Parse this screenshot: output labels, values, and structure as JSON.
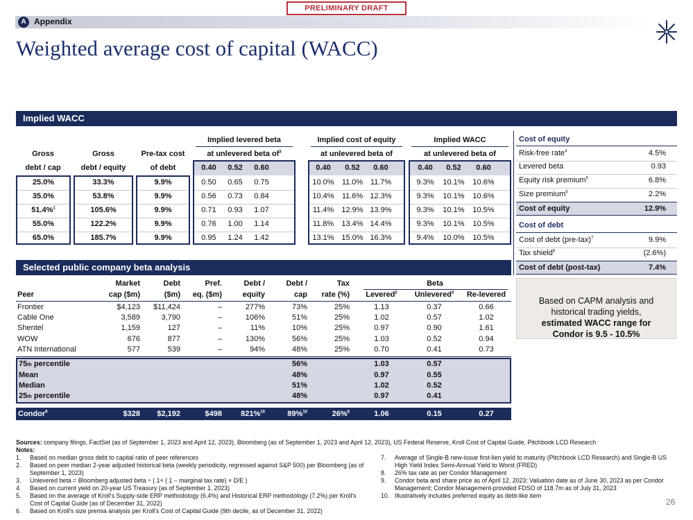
{
  "header": {
    "draft": "PRELIMINARY DRAFT",
    "appendix_letter": "A",
    "appendix_label": "Appendix",
    "title": "Weighted average cost of capital (WACC)",
    "page_number": "26"
  },
  "wacc": {
    "section_title": "Implied WACC",
    "col_gross_debt_cap": [
      "Gross",
      "debt  / cap"
    ],
    "col_gross_debt_equity": [
      "Gross",
      "debt / equity"
    ],
    "col_pretax": [
      "Pre-tax cost",
      "of debt"
    ],
    "grp_levered": [
      "Implied levered beta",
      "at unlevered beta of"
    ],
    "grp_levered_sup": "3",
    "grp_coe": [
      "Implied cost of equity",
      "at unlevered beta of"
    ],
    "grp_wacc": [
      "Implied WACC",
      "at unlevered beta of"
    ],
    "betas": [
      "0.40",
      "0.52",
      "0.60"
    ],
    "rows": [
      {
        "dc": "25.0%",
        "dc_sup": "",
        "de": "33.3%",
        "pt": "9.9%",
        "lb": [
          "0.50",
          "0.65",
          "0.75"
        ],
        "coe": [
          "10.0%",
          "11.0%",
          "11.7%"
        ],
        "w": [
          "9.3%",
          "10.1%",
          "10.6%"
        ]
      },
      {
        "dc": "35.0%",
        "dc_sup": "",
        "de": "53.8%",
        "pt": "9.9%",
        "lb": [
          "0.56",
          "0.73",
          "0.84"
        ],
        "coe": [
          "10.4%",
          "11.6%",
          "12.3%"
        ],
        "w": [
          "9.3%",
          "10.1%",
          "10.6%"
        ]
      },
      {
        "dc": "51.4%",
        "dc_sup": "1",
        "de": "105.6%",
        "pt": "9.9%",
        "lb": [
          "0.71",
          "0.93",
          "1.07"
        ],
        "coe": [
          "11.4%",
          "12.9%",
          "13.9%"
        ],
        "w": [
          "9.3%",
          "10.1%",
          "10.5%"
        ]
      },
      {
        "dc": "55.0%",
        "dc_sup": "",
        "de": "122.2%",
        "pt": "9.9%",
        "lb": [
          "0.76",
          "1.00",
          "1.14"
        ],
        "coe": [
          "11.8%",
          "13.4%",
          "14.4%"
        ],
        "w": [
          "9.3%",
          "10.1%",
          "10.5%"
        ]
      },
      {
        "dc": "65.0%",
        "dc_sup": "",
        "de": "185.7%",
        "pt": "9.9%",
        "lb": [
          "0.95",
          "1.24",
          "1.42"
        ],
        "coe": [
          "13.1%",
          "15.0%",
          "16.3%"
        ],
        "w": [
          "9.4%",
          "10.0%",
          "10.5%"
        ]
      }
    ]
  },
  "coe_panel": {
    "coe_title": "Cost of equity",
    "rows": [
      {
        "label": "Risk-free rate",
        "sup": "4",
        "value": "4.5%"
      },
      {
        "label": "Levered beta",
        "sup": "",
        "value": "0.93"
      },
      {
        "label": "Equity risk premium",
        "sup": "5",
        "value": "6.8%"
      },
      {
        "label": "Size premium",
        "sup": "6",
        "value": "2.2%"
      }
    ],
    "coe_total_label": "Cost of equity",
    "coe_total_value": "12.9%",
    "cod_title": "Cost of debt",
    "cod_rows": [
      {
        "label": "Cost of debt (pre-tax)",
        "sup": "7",
        "value": "9.9%"
      },
      {
        "label": "Tax shield",
        "sup": "8",
        "value": "(2.6%)"
      }
    ],
    "cod_total_label": "Cost of debt (post-tax)",
    "cod_total_value": "7.4%"
  },
  "capm_box": {
    "line1": "Based on CAPM analysis and",
    "line2": "historical trading yields,",
    "line3": "estimated WACC range for",
    "line4": "Condor is 9.5 - 10.5%"
  },
  "beta": {
    "section_title": "Selected public company beta analysis",
    "h_peer": "Peer",
    "h_mcap": [
      "Market",
      "cap ($m)"
    ],
    "h_debt": [
      "Debt",
      "($m)"
    ],
    "h_pref": [
      "Pref.",
      "eq. ($m)"
    ],
    "h_de": [
      "Debt /",
      "equity"
    ],
    "h_dc": [
      "Debt /",
      "cap"
    ],
    "h_tax": [
      "Tax",
      "rate (%)"
    ],
    "h_beta": "Beta",
    "h_lev": "Levered",
    "h_lev_sup": "2",
    "h_unlev": "Unlevered",
    "h_unlev_sup": "3",
    "h_relev": "Re-levered",
    "peers": [
      {
        "name": "Frontier",
        "mcap": "$4,123",
        "debt": "$11,424",
        "pref": "–",
        "de": "277%",
        "dc": "73%",
        "tax": "25%",
        "lev": "1.13",
        "unlev": "0.37",
        "relev": "0.66"
      },
      {
        "name": "Cable One",
        "mcap": "3,589",
        "debt": "3,790",
        "pref": "–",
        "de": "106%",
        "dc": "51%",
        "tax": "25%",
        "lev": "1.02",
        "unlev": "0.57",
        "relev": "1.02"
      },
      {
        "name": "Shentel",
        "mcap": "1,159",
        "debt": "127",
        "pref": "–",
        "de": "11%",
        "dc": "10%",
        "tax": "25%",
        "lev": "0.97",
        "unlev": "0.90",
        "relev": "1.61"
      },
      {
        "name": "WOW",
        "mcap": "676",
        "debt": "877",
        "pref": "–",
        "de": "130%",
        "dc": "56%",
        "tax": "25%",
        "lev": "1.03",
        "unlev": "0.52",
        "relev": "0.94"
      },
      {
        "name": "ATN International",
        "mcap": "577",
        "debt": "539",
        "pref": "–",
        "de": "94%",
        "dc": "48%",
        "tax": "25%",
        "lev": "0.70",
        "unlev": "0.41",
        "relev": "0.73"
      }
    ],
    "stats": [
      {
        "pre": "75",
        "th": "th",
        "post": " percentile",
        "dc": "56%",
        "lev": "1.03",
        "unlev": "0.57"
      },
      {
        "pre": "Mean",
        "th": "",
        "post": "",
        "dc": "48%",
        "lev": "0.97",
        "unlev": "0.55"
      },
      {
        "pre": "Median",
        "th": "",
        "post": "",
        "dc": "51%",
        "lev": "1.02",
        "unlev": "0.52"
      },
      {
        "pre": "25",
        "th": "th",
        "post": " percentile",
        "dc": "48%",
        "lev": "0.97",
        "unlev": "0.41"
      }
    ],
    "condor": {
      "name": "Condor",
      "name_sup": "9",
      "mcap": "$328",
      "debt": "$2,192",
      "pref": "$498",
      "de": "821%",
      "de_sup": "10",
      "dc": "89%",
      "dc_sup": "10",
      "tax": "26%",
      "tax_sup": "8",
      "lev": "1.06",
      "unlev": "0.15",
      "relev": "0.27"
    }
  },
  "footer": {
    "sources_label": "Sources:",
    "sources_text": " company filings, FactSet (as of September 1, 2023 and April 12, 2023), Bloomberg (as of September 1, 2023 and April 12, 2023), US Federal Reserve, Kroll Cost of Capital Guide, Pitchbook LCD Research",
    "notes_label": "Notes:",
    "notes_left": [
      {
        "n": "1.",
        "t": "Based on median gross debt to capital ratio of peer references"
      },
      {
        "n": "2.",
        "t": "Based on peer median 2-year adjusted historical beta (weekly periodicity, regressed against S&P 500) per Bloomberg (as of September 1, 2023)"
      },
      {
        "n": "3.",
        "t": "Unlevered beta = Bloomberg adjusted beta ÷ ( 1+ ( 1 – marginal tax rate) × D/E )"
      },
      {
        "n": "4.",
        "t": "Based on current yield on 20-year US Treasury (as of September 1, 2023)"
      },
      {
        "n": "5.",
        "t": "Based on the average of Kroll's Supply-side ERP methodology (6.4%) and Historical ERP methodology (7.2%) per Kroll's Cost of Capital Guide (as of December 31, 2022)"
      },
      {
        "n": "6.",
        "t": "Based on Kroll's size premia analysis per Kroll's Cost of Capital Guide (9th decile, as of December 31, 2022)"
      }
    ],
    "notes_right": [
      {
        "n": "7.",
        "t": "Average of Single-B new-issue first-lien yield to maturity (Pitchbook LCD Research) and Single-B US High Yield Index Semi-Annual Yield to Worst (FRED)"
      },
      {
        "n": "8.",
        "t": "26% tax rate as per Condor Management"
      },
      {
        "n": "9.",
        "t": "Condor beta and share price as of April 12, 2023; Valuation date as of June 30, 2023 as per Condor Management; Condor Management-provided FDSO of 118.7m as of July 31, 2023"
      },
      {
        "n": "10.",
        "t": "Illustratively includes preferred equity as debt-like item"
      }
    ]
  }
}
